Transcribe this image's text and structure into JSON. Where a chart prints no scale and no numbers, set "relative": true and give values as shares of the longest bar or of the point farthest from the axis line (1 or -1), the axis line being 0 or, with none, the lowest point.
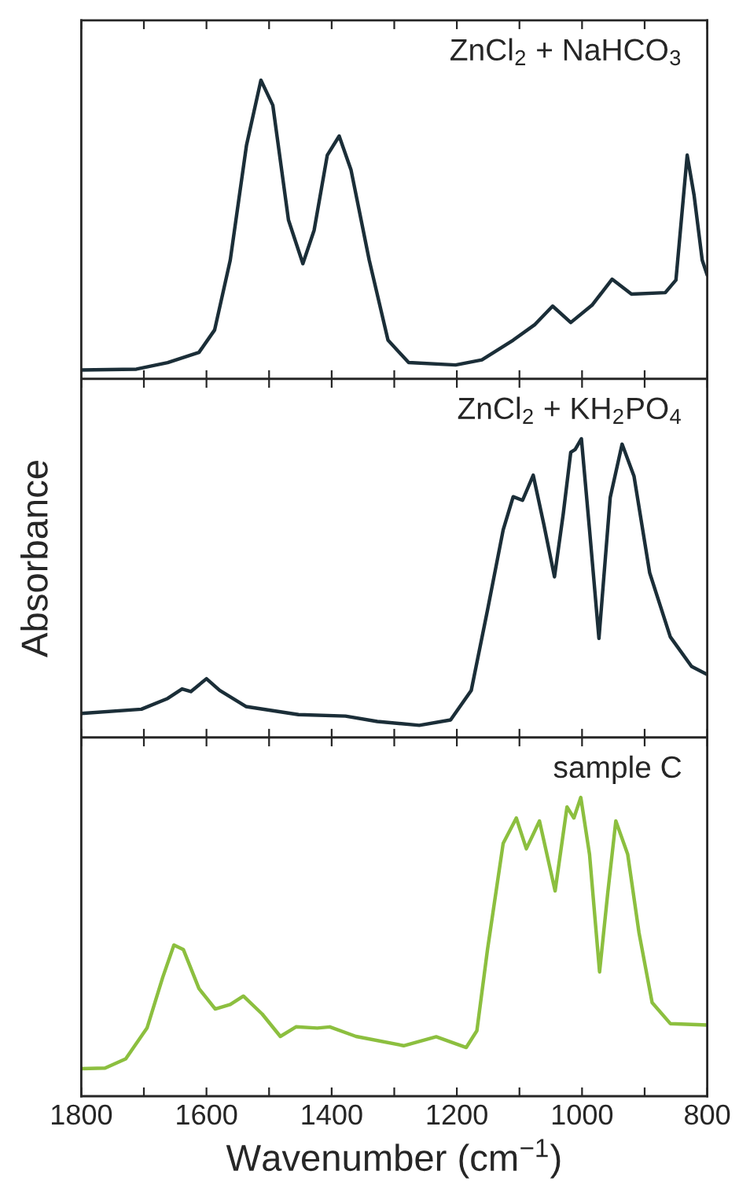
{
  "chart_data": [
    {
      "type": "line",
      "title": "ZnCl$_{2}$ + NaHCO$_{3}$",
      "relative": true,
      "tick_labels": false,
      "xlim": [
        1800,
        800
      ],
      "xticks": [
        1800,
        {
          "value": 1700,
          "label": null
        },
        1600,
        {
          "value": 1500,
          "label": null
        },
        1400,
        {
          "value": 1300,
          "label": null
        },
        1200,
        {
          "value": 1100,
          "label": null
        },
        1000,
        {
          "value": 900,
          "label": null
        },
        800
      ],
      "series": [
        {
          "color": "#1b2e38",
          "x": [
            1800,
            1712,
            1662,
            1612,
            1587,
            1562,
            1536,
            1513,
            1494,
            1469,
            1446,
            1428,
            1407,
            1388,
            1369,
            1340,
            1310,
            1277,
            1202,
            1160,
            1110,
            1076,
            1047,
            1018,
            984,
            952,
            921,
            867,
            850,
            832,
            821,
            808,
            800
          ],
          "values": [
            0.03,
            0.033,
            0.055,
            0.089,
            0.164,
            0.398,
            0.783,
            1.0,
            0.916,
            0.532,
            0.386,
            0.498,
            0.749,
            0.813,
            0.699,
            0.398,
            0.13,
            0.055,
            0.047,
            0.064,
            0.13,
            0.181,
            0.244,
            0.189,
            0.247,
            0.334,
            0.284,
            0.289,
            0.331,
            0.749,
            0.615,
            0.398,
            0.348
          ]
        }
      ]
    },
    {
      "type": "line",
      "title": "ZnCl$_{2}$ + KH$_{2}$PO$_{4}$",
      "ylabel": "Absorbance",
      "relative": true,
      "tick_labels": false,
      "xlim": [
        1800,
        800
      ],
      "xticks": [
        1800,
        {
          "value": 1700,
          "label": null
        },
        1600,
        {
          "value": 1500,
          "label": null
        },
        1400,
        {
          "value": 1300,
          "label": null
        },
        1200,
        {
          "value": 1100,
          "label": null
        },
        1000,
        {
          "value": 900,
          "label": null
        },
        800
      ],
      "series": [
        {
          "color": "#1b2e38",
          "x": [
            1800,
            1704,
            1662,
            1639,
            1625,
            1600,
            1579,
            1537,
            1453,
            1378,
            1327,
            1260,
            1210,
            1177,
            1151,
            1126,
            1110,
            1095,
            1078,
            1061,
            1044,
            1030,
            1018,
            1011,
            1001,
            988,
            973,
            955,
            936,
            917,
            892,
            859,
            825,
            800
          ],
          "values": [
            0.081,
            0.095,
            0.131,
            0.163,
            0.154,
            0.197,
            0.158,
            0.104,
            0.077,
            0.072,
            0.054,
            0.041,
            0.059,
            0.158,
            0.427,
            0.695,
            0.806,
            0.794,
            0.878,
            0.713,
            0.538,
            0.749,
            0.955,
            0.964,
            1.0,
            0.695,
            0.332,
            0.803,
            0.982,
            0.875,
            0.552,
            0.337,
            0.238,
            0.211
          ]
        }
      ]
    },
    {
      "type": "line",
      "title": "sample C",
      "xlabel": "Wavenumber (cm$^{−1}$)",
      "relative": true,
      "tick_labels": "x",
      "xlim": [
        1800,
        800
      ],
      "xticks": [
        1800,
        {
          "value": 1700,
          "label": null
        },
        1600,
        {
          "value": 1500,
          "label": null
        },
        1400,
        {
          "value": 1300,
          "label": null
        },
        1200,
        {
          "value": 1100,
          "label": null
        },
        1000,
        {
          "value": 900,
          "label": null
        },
        800
      ],
      "series": [
        {
          "color": "#8cbf3f",
          "x": [
            1800,
            1762,
            1729,
            1695,
            1670,
            1652,
            1637,
            1612,
            1586,
            1562,
            1541,
            1511,
            1482,
            1457,
            1423,
            1403,
            1361,
            1285,
            1233,
            1185,
            1168,
            1151,
            1126,
            1105,
            1089,
            1068,
            1043,
            1024,
            1013,
            1002,
            988,
            972,
            959,
            946,
            927,
            909,
            888,
            859,
            800
          ],
          "values": [
            0.092,
            0.094,
            0.125,
            0.228,
            0.397,
            0.506,
            0.491,
            0.36,
            0.292,
            0.307,
            0.335,
            0.275,
            0.2,
            0.232,
            0.228,
            0.232,
            0.2,
            0.169,
            0.199,
            0.163,
            0.219,
            0.491,
            0.846,
            0.931,
            0.828,
            0.921,
            0.687,
            0.968,
            0.931,
            1.0,
            0.809,
            0.416,
            0.678,
            0.921,
            0.809,
            0.547,
            0.313,
            0.243,
            0.238
          ]
        }
      ]
    }
  ]
}
